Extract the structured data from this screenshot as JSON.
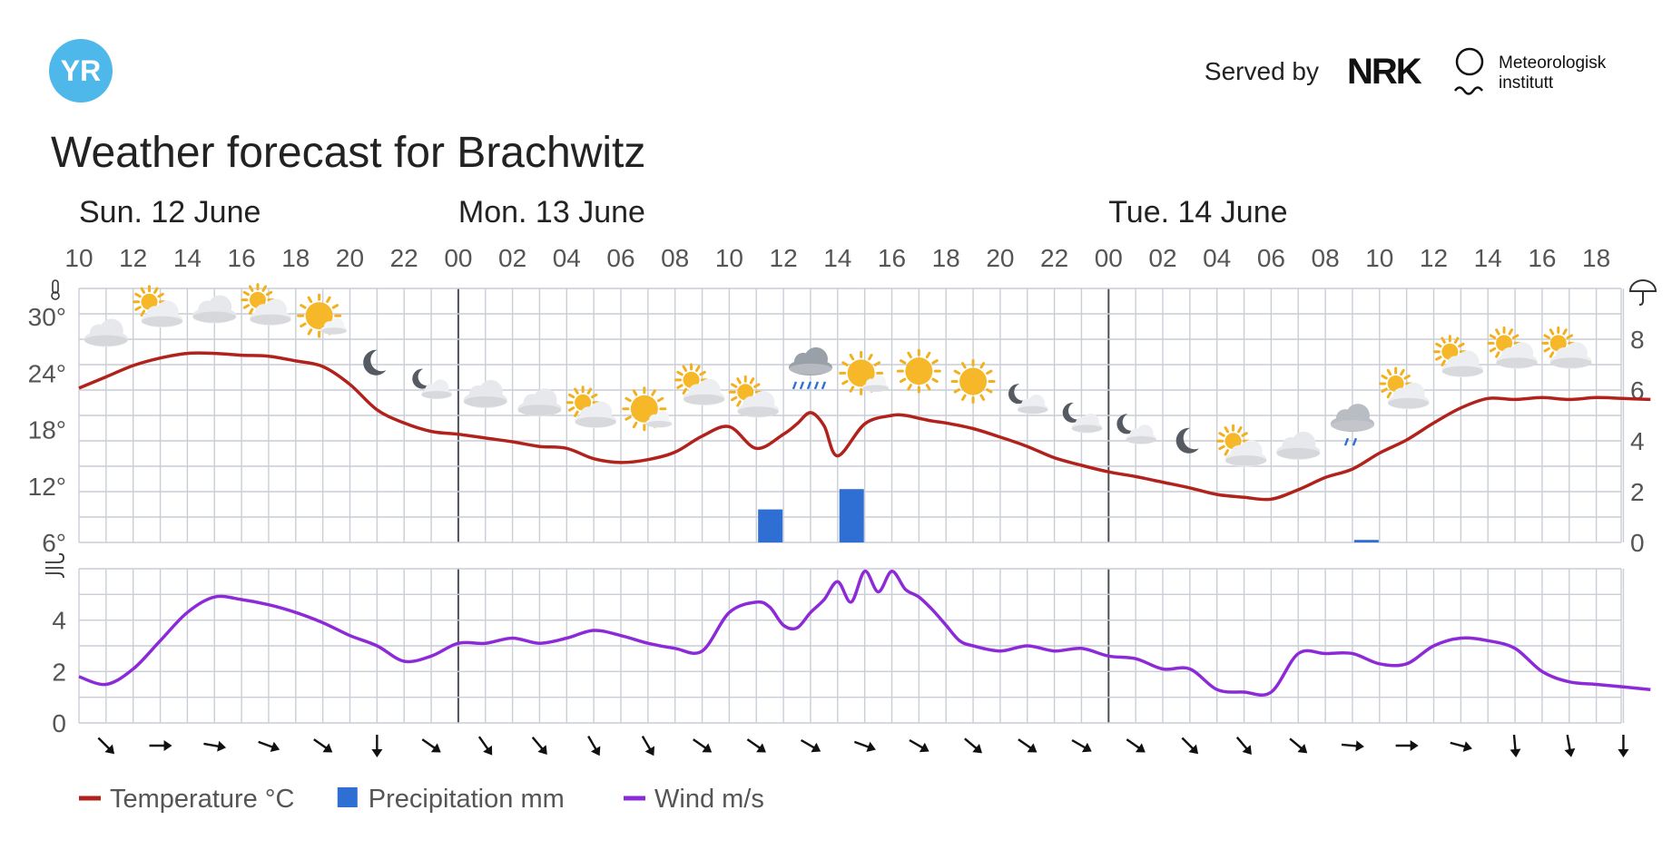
{
  "header": {
    "logo_text": "YR",
    "served_by": "Served by",
    "nrk_logo_text": "NRK",
    "met_line1": "Meteorologisk",
    "met_line2": "institutt",
    "title": "Weather forecast for Brachwitz"
  },
  "colors": {
    "temperature": "#b0221b",
    "precipitation": "#2f6fd3",
    "wind": "#8c2ad8",
    "grid": "#c9ced6",
    "day_divider": "#4a4f58",
    "yr_logo": "#4fb8ea"
  },
  "days": [
    {
      "label": "Sun. 12 June",
      "start_hour": 10
    },
    {
      "label": "Mon. 13 June",
      "start_hour": 24
    },
    {
      "label": "Tue. 14 June",
      "start_hour": 48
    }
  ],
  "legend": [
    {
      "label": "Temperature °C",
      "kind": "line",
      "color": "#b0221b"
    },
    {
      "label": "Precipitation mm",
      "kind": "bar",
      "color": "#2f6fd3"
    },
    {
      "label": "Wind m/s",
      "kind": "line",
      "color": "#8c2ad8"
    }
  ],
  "chart_data": {
    "type": "line",
    "x_unit": "hours",
    "x_tick_labels": [
      "10",
      "12",
      "14",
      "16",
      "18",
      "20",
      "22",
      "00",
      "02",
      "04",
      "06",
      "08",
      "10",
      "12",
      "14",
      "16",
      "18",
      "20",
      "22",
      "00",
      "02",
      "04",
      "06",
      "08",
      "10",
      "12",
      "14",
      "16",
      "18"
    ],
    "temperature_axis": {
      "ticks": [
        "6°",
        "12°",
        "18°",
        "24°",
        "30°"
      ],
      "ylim": [
        6,
        33
      ]
    },
    "precipitation_axis": {
      "ticks": [
        "0",
        "2",
        "4",
        "6",
        "8"
      ],
      "ylim": [
        0,
        10
      ],
      "icon": "umbrella-icon"
    },
    "wind_axis": {
      "ticks": [
        "0",
        "2",
        "4"
      ],
      "ylim": [
        0,
        6
      ],
      "icon": "wind-icon"
    },
    "temperature_icon": "thermometer-icon",
    "series": [
      {
        "name": "Temperature °C",
        "hours": [
          10,
          11,
          12,
          13,
          14,
          15,
          16,
          17,
          18,
          19,
          20,
          21,
          22,
          23,
          24,
          25,
          26,
          27,
          28,
          29,
          30,
          31,
          32,
          33,
          34,
          35,
          36,
          36.5,
          37,
          37.5,
          38,
          39,
          40,
          40.5,
          41,
          41.5,
          42,
          43,
          44,
          45,
          46,
          47,
          48,
          49,
          50,
          51,
          52,
          53,
          54,
          55,
          56,
          57,
          58,
          59,
          60,
          61,
          62,
          63,
          64,
          65,
          66,
          67,
          68
        ],
        "values": [
          22.4,
          23.6,
          24.8,
          25.6,
          26.1,
          26.1,
          25.9,
          25.8,
          25.3,
          24.7,
          22.8,
          20.1,
          18.7,
          17.8,
          17.5,
          17.1,
          16.7,
          16.2,
          16.0,
          14.9,
          14.5,
          14.8,
          15.6,
          17.3,
          18.3,
          16.0,
          17.5,
          18.6,
          19.8,
          18.4,
          15.2,
          18.6,
          19.5,
          19.5,
          19.2,
          18.9,
          18.7,
          18.1,
          17.2,
          16.2,
          15.0,
          14.2,
          13.5,
          13.0,
          12.4,
          11.8,
          11.1,
          10.8,
          10.6,
          11.6,
          12.9,
          13.8,
          15.5,
          16.9,
          18.7,
          20.3,
          21.3,
          21.2,
          21.4,
          21.2,
          21.4,
          21.3,
          21.2
        ]
      },
      {
        "name": "Precipitation mm",
        "bars": [
          {
            "hour": 35.5,
            "value": 1.3
          },
          {
            "hour": 38.5,
            "value": 2.1
          },
          {
            "hour": 57.5,
            "value": 0.1
          }
        ]
      },
      {
        "name": "Wind m/s",
        "hours": [
          10,
          11,
          12,
          13,
          14,
          15,
          16,
          17,
          18,
          19,
          20,
          21,
          22,
          23,
          24,
          25,
          26,
          27,
          28,
          29,
          30,
          31,
          32,
          33,
          34,
          35,
          35.5,
          36,
          36.5,
          37,
          37.5,
          38,
          38.5,
          39,
          39.5,
          40,
          40.5,
          41,
          41.5,
          42,
          42.5,
          43,
          44,
          45,
          46,
          47,
          48,
          49,
          50,
          51,
          52,
          53,
          54,
          55,
          56,
          57,
          58,
          59,
          60,
          61,
          62,
          63,
          64,
          65,
          66,
          67,
          68
        ],
        "values": [
          1.8,
          1.5,
          2.1,
          3.2,
          4.3,
          4.9,
          4.8,
          4.6,
          4.3,
          3.9,
          3.4,
          3.0,
          2.4,
          2.6,
          3.1,
          3.1,
          3.3,
          3.1,
          3.3,
          3.6,
          3.4,
          3.1,
          2.9,
          2.8,
          4.3,
          4.7,
          4.5,
          3.8,
          3.7,
          4.3,
          4.8,
          5.5,
          4.7,
          5.9,
          5.1,
          5.9,
          5.2,
          4.9,
          4.4,
          3.8,
          3.2,
          3.0,
          2.8,
          3.0,
          2.8,
          2.9,
          2.6,
          2.5,
          2.1,
          2.1,
          1.3,
          1.2,
          1.2,
          2.7,
          2.7,
          2.7,
          2.3,
          2.3,
          3.0,
          3.3,
          3.2,
          2.9,
          2.0,
          1.6,
          1.5,
          1.4,
          1.3
        ]
      }
    ],
    "weather_symbols": [
      {
        "hour": 11,
        "icon": "cloudy-icon"
      },
      {
        "hour": 13,
        "icon": "partly-cloudy-day-icon"
      },
      {
        "hour": 15,
        "icon": "cloudy-icon"
      },
      {
        "hour": 17,
        "icon": "partly-cloudy-day-icon"
      },
      {
        "hour": 19,
        "icon": "fair-day-icon"
      },
      {
        "hour": 21,
        "icon": "clear-night-icon"
      },
      {
        "hour": 23,
        "icon": "partly-cloudy-night-icon"
      },
      {
        "hour": 25,
        "icon": "cloudy-icon"
      },
      {
        "hour": 27,
        "icon": "cloudy-icon"
      },
      {
        "hour": 29,
        "icon": "partly-cloudy-day-icon"
      },
      {
        "hour": 31,
        "icon": "fair-day-icon"
      },
      {
        "hour": 33,
        "icon": "partly-cloudy-day-icon"
      },
      {
        "hour": 35,
        "icon": "partly-cloudy-day-icon"
      },
      {
        "hour": 37,
        "icon": "rain-icon"
      },
      {
        "hour": 39,
        "icon": "fair-day-icon"
      },
      {
        "hour": 41,
        "icon": "clear-day-icon"
      },
      {
        "hour": 43,
        "icon": "clear-day-icon"
      },
      {
        "hour": 45,
        "icon": "partly-cloudy-night-icon"
      },
      {
        "hour": 47,
        "icon": "partly-cloudy-night-icon"
      },
      {
        "hour": 49,
        "icon": "partly-cloudy-night-icon"
      },
      {
        "hour": 51,
        "icon": "clear-night-icon"
      },
      {
        "hour": 53,
        "icon": "partly-cloudy-day-icon"
      },
      {
        "hour": 55,
        "icon": "cloudy-icon"
      },
      {
        "hour": 57,
        "icon": "light-rain-icon"
      },
      {
        "hour": 59,
        "icon": "partly-cloudy-day-icon"
      },
      {
        "hour": 61,
        "icon": "partly-cloudy-day-icon"
      },
      {
        "hour": 63,
        "icon": "partly-cloudy-day-icon"
      },
      {
        "hour": 65,
        "icon": "partly-cloudy-day-icon"
      }
    ],
    "wind_directions": [
      {
        "hour": 11,
        "deg": 135
      },
      {
        "hour": 13,
        "deg": 90
      },
      {
        "hour": 15,
        "deg": 100
      },
      {
        "hour": 17,
        "deg": 110
      },
      {
        "hour": 19,
        "deg": 125
      },
      {
        "hour": 21,
        "deg": 180
      },
      {
        "hour": 23,
        "deg": 125
      },
      {
        "hour": 25,
        "deg": 145
      },
      {
        "hour": 27,
        "deg": 140
      },
      {
        "hour": 29,
        "deg": 150
      },
      {
        "hour": 31,
        "deg": 150
      },
      {
        "hour": 33,
        "deg": 125
      },
      {
        "hour": 35,
        "deg": 125
      },
      {
        "hour": 37,
        "deg": 120
      },
      {
        "hour": 39,
        "deg": 110
      },
      {
        "hour": 41,
        "deg": 120
      },
      {
        "hour": 43,
        "deg": 130
      },
      {
        "hour": 45,
        "deg": 125
      },
      {
        "hour": 47,
        "deg": 120
      },
      {
        "hour": 49,
        "deg": 125
      },
      {
        "hour": 51,
        "deg": 135
      },
      {
        "hour": 53,
        "deg": 140
      },
      {
        "hour": 55,
        "deg": 130
      },
      {
        "hour": 57,
        "deg": 95
      },
      {
        "hour": 59,
        "deg": 90
      },
      {
        "hour": 61,
        "deg": 105
      },
      {
        "hour": 63,
        "deg": 175
      },
      {
        "hour": 65,
        "deg": 170
      },
      {
        "hour": 67,
        "deg": 180
      }
    ]
  }
}
